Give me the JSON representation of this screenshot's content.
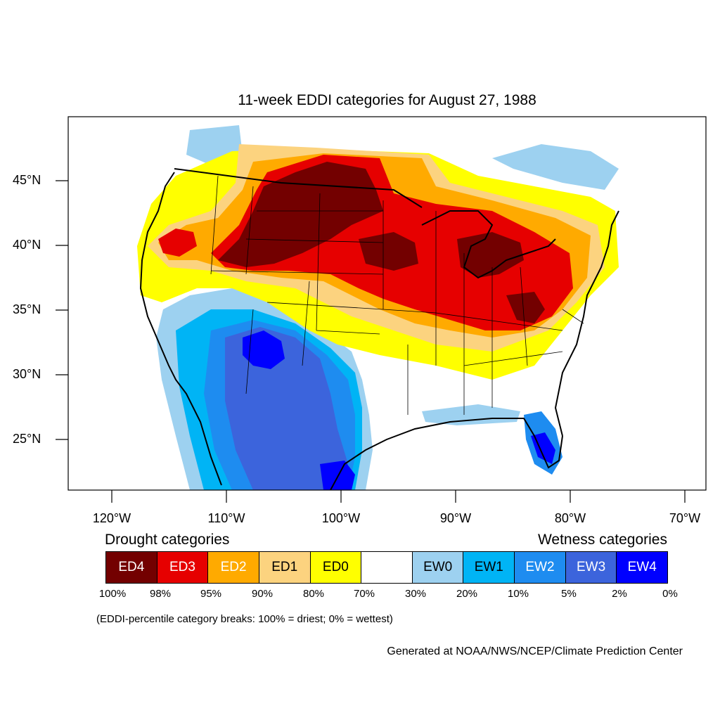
{
  "title": "11-week EDDI categories for August 27, 1988",
  "lat_labels": [
    "45°N",
    "40°N",
    "35°N",
    "30°N",
    "25°N"
  ],
  "lon_labels": [
    "120°W",
    "110°W",
    "100°W",
    "90°W",
    "80°W",
    "70°W"
  ],
  "legend": {
    "drought_heading": "Drought categories",
    "wetness_heading": "Wetness categories",
    "categories": [
      {
        "label": "ED4",
        "color": "#730000",
        "text_color": "#ffffff"
      },
      {
        "label": "ED3",
        "color": "#e60000",
        "text_color": "#ffffff"
      },
      {
        "label": "ED2",
        "color": "#ffaa00",
        "text_color": "#ffffff"
      },
      {
        "label": "ED1",
        "color": "#fcd37f",
        "text_color": "#000000"
      },
      {
        "label": "ED0",
        "color": "#ffff00",
        "text_color": "#000000"
      },
      {
        "label": "",
        "color": "#ffffff",
        "text_color": "#000000"
      },
      {
        "label": "EW0",
        "color": "#9dd1f0",
        "text_color": "#000000"
      },
      {
        "label": "EW1",
        "color": "#00b4f5",
        "text_color": "#000000"
      },
      {
        "label": "EW2",
        "color": "#1e8cf0",
        "text_color": "#ffffff"
      },
      {
        "label": "EW3",
        "color": "#3c64dc",
        "text_color": "#ffffff"
      },
      {
        "label": "EW4",
        "color": "#0000ff",
        "text_color": "#ffffff"
      }
    ],
    "breaks": [
      "100%",
      "98%",
      "95%",
      "90%",
      "80%",
      "70%",
      "30%",
      "20%",
      "10%",
      "5%",
      "2%",
      "0%"
    ]
  },
  "note": "(EDDI-percentile category breaks: 100% = driest; 0% = wettest)",
  "credit": "Generated at NOAA/NWS/NCEP/Climate Prediction Center"
}
